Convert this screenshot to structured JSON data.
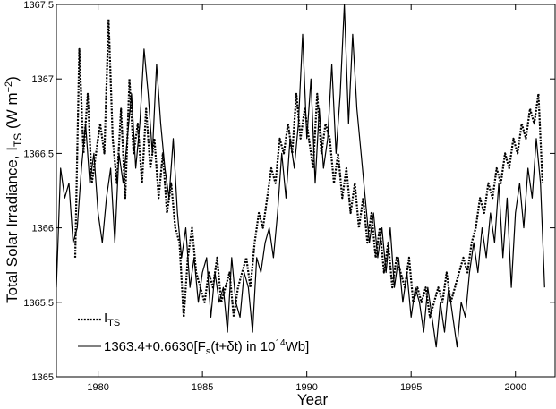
{
  "chart_data": {
    "type": "line",
    "xlabel": "Year",
    "ylabel": {
      "main": "Total Solar Irradiance, I",
      "sub": "TS",
      "units_open": " (W m",
      "units_exp": "−2",
      "units_close": ")"
    },
    "xlim": [
      1978.0,
      2001.9
    ],
    "ylim": [
      1365.0,
      1367.5
    ],
    "x_ticks": [
      1980,
      1985,
      1990,
      1995,
      2000
    ],
    "y_ticks": [
      {
        "value": 1365.0,
        "label": "1365"
      },
      {
        "value": 1365.5,
        "label": "1365.5"
      },
      {
        "value": 1366.0,
        "label": "1366"
      },
      {
        "value": 1366.5,
        "label": "1366.5"
      },
      {
        "value": 1367.0,
        "label": "1367"
      },
      {
        "value": 1367.5,
        "label": "1367.5"
      }
    ],
    "grid": false,
    "legend_position": "bottom-left",
    "legend": {
      "its": {
        "main": "I",
        "sub": "TS"
      },
      "model": {
        "part1": "1363.4+0.6630[F",
        "sub": "s",
        "part2": "(t+δt) in 10",
        "exp": "14",
        "part3": "Wb]"
      }
    },
    "series": [
      {
        "key": "its",
        "style": "dotted",
        "x": [
          1978.9,
          1979.1,
          1979.3,
          1979.5,
          1979.7,
          1979.9,
          1980.1,
          1980.3,
          1980.5,
          1980.7,
          1980.9,
          1981.1,
          1981.3,
          1981.5,
          1981.7,
          1981.9,
          1982.1,
          1982.3,
          1982.5,
          1982.7,
          1982.9,
          1983.1,
          1983.3,
          1983.5,
          1983.7,
          1983.9,
          1984.1,
          1984.3,
          1984.5,
          1984.7,
          1984.9,
          1985.1,
          1985.3,
          1985.5,
          1985.7,
          1985.9,
          1986.1,
          1986.3,
          1986.5,
          1986.7,
          1986.9,
          1987.1,
          1987.3,
          1987.5,
          1987.7,
          1987.9,
          1988.1,
          1988.3,
          1988.5,
          1988.7,
          1988.9,
          1989.1,
          1989.3,
          1989.5,
          1989.7,
          1989.9,
          1990.1,
          1990.3,
          1990.5,
          1990.7,
          1990.9,
          1991.1,
          1991.3,
          1991.5,
          1991.7,
          1991.9,
          1992.1,
          1992.3,
          1992.5,
          1992.7,
          1992.9,
          1993.1,
          1993.3,
          1993.5,
          1993.7,
          1993.9,
          1994.1,
          1994.3,
          1994.5,
          1994.7,
          1994.9,
          1995.1,
          1995.3,
          1995.5,
          1995.7,
          1995.9,
          1996.1,
          1996.3,
          1996.5,
          1996.7,
          1996.9,
          1997.1,
          1997.3,
          1997.5,
          1997.7,
          1997.9,
          1998.1,
          1998.3,
          1998.5,
          1998.7,
          1998.9,
          1999.1,
          1999.3,
          1999.5,
          1999.7,
          1999.9,
          2000.1,
          2000.3,
          2000.5,
          2000.7,
          2000.9,
          2001.1,
          2001.3
        ],
        "y": [
          1365.8,
          1367.2,
          1366.5,
          1366.9,
          1366.3,
          1366.5,
          1366.7,
          1366.5,
          1367.4,
          1366.6,
          1366.3,
          1366.8,
          1366.2,
          1367.0,
          1366.5,
          1366.7,
          1366.3,
          1366.8,
          1366.4,
          1366.6,
          1366.2,
          1366.5,
          1366.1,
          1366.3,
          1366.0,
          1365.9,
          1365.4,
          1365.8,
          1366.0,
          1365.7,
          1365.6,
          1365.5,
          1365.7,
          1365.6,
          1365.8,
          1365.5,
          1365.6,
          1365.7,
          1365.4,
          1365.6,
          1365.7,
          1365.8,
          1365.6,
          1365.9,
          1366.1,
          1366.0,
          1366.2,
          1366.4,
          1366.3,
          1366.6,
          1366.5,
          1366.7,
          1366.5,
          1366.9,
          1366.6,
          1366.8,
          1366.6,
          1366.4,
          1366.9,
          1366.5,
          1366.7,
          1366.6,
          1366.3,
          1366.5,
          1366.2,
          1366.4,
          1366.1,
          1366.3,
          1366.0,
          1366.2,
          1365.9,
          1366.1,
          1365.8,
          1366.0,
          1365.7,
          1365.9,
          1365.6,
          1365.8,
          1365.7,
          1365.6,
          1365.8,
          1365.5,
          1365.6,
          1365.5,
          1365.6,
          1365.4,
          1365.5,
          1365.6,
          1365.5,
          1365.7,
          1365.5,
          1365.6,
          1365.7,
          1365.8,
          1365.7,
          1365.9,
          1366.0,
          1366.2,
          1366.1,
          1366.3,
          1366.2,
          1366.4,
          1366.3,
          1366.5,
          1366.4,
          1366.6,
          1366.5,
          1366.7,
          1366.6,
          1366.8,
          1366.7,
          1366.9,
          1366.3
        ]
      },
      {
        "key": "model",
        "style": "solid",
        "x": [
          1978.0,
          1978.2,
          1978.4,
          1978.6,
          1978.8,
          1979.0,
          1979.2,
          1979.4,
          1979.6,
          1979.8,
          1980.0,
          1980.2,
          1980.4,
          1980.6,
          1980.8,
          1981.0,
          1981.2,
          1981.4,
          1981.6,
          1981.8,
          1982.0,
          1982.2,
          1982.4,
          1982.6,
          1982.8,
          1983.0,
          1983.2,
          1983.4,
          1983.6,
          1983.8,
          1984.0,
          1984.2,
          1984.4,
          1984.6,
          1984.8,
          1985.0,
          1985.2,
          1985.4,
          1985.6,
          1985.8,
          1986.0,
          1986.2,
          1986.4,
          1986.6,
          1986.8,
          1987.0,
          1987.2,
          1987.4,
          1987.6,
          1987.8,
          1988.0,
          1988.2,
          1988.4,
          1988.6,
          1988.8,
          1989.0,
          1989.2,
          1989.4,
          1989.6,
          1989.8,
          1990.0,
          1990.2,
          1990.4,
          1990.6,
          1990.8,
          1991.0,
          1991.2,
          1991.4,
          1991.6,
          1991.8,
          1992.0,
          1992.2,
          1992.4,
          1992.6,
          1992.8,
          1993.0,
          1993.2,
          1993.4,
          1993.6,
          1993.8,
          1994.0,
          1994.2,
          1994.4,
          1994.6,
          1994.8,
          1995.0,
          1995.2,
          1995.4,
          1995.6,
          1995.8,
          1996.0,
          1996.2,
          1996.4,
          1996.6,
          1996.8,
          1997.0,
          1997.2,
          1997.4,
          1997.6,
          1997.8,
          1998.0,
          1998.2,
          1998.4,
          1998.6,
          1998.8,
          1999.0,
          1999.2,
          1999.4,
          1999.6,
          1999.8,
          2000.0,
          2000.2,
          2000.4,
          2000.6,
          2000.8,
          2001.0,
          2001.2,
          2001.4
        ],
        "y": [
          1365.6,
          1366.4,
          1366.2,
          1366.3,
          1365.9,
          1366.0,
          1366.4,
          1366.7,
          1366.3,
          1366.5,
          1366.1,
          1365.9,
          1366.2,
          1366.4,
          1365.9,
          1366.5,
          1366.3,
          1366.6,
          1366.9,
          1366.4,
          1366.7,
          1367.2,
          1366.9,
          1366.5,
          1367.1,
          1366.7,
          1366.4,
          1366.2,
          1366.6,
          1366.1,
          1365.8,
          1366.0,
          1365.6,
          1365.8,
          1365.5,
          1365.7,
          1365.8,
          1365.4,
          1365.7,
          1365.5,
          1365.6,
          1365.3,
          1365.8,
          1365.5,
          1365.4,
          1365.7,
          1365.6,
          1365.3,
          1365.8,
          1365.7,
          1365.9,
          1366.0,
          1365.8,
          1366.1,
          1366.5,
          1366.2,
          1366.6,
          1366.4,
          1366.7,
          1367.3,
          1366.6,
          1367.0,
          1366.3,
          1366.8,
          1366.4,
          1366.6,
          1367.1,
          1366.5,
          1366.9,
          1367.5,
          1366.7,
          1367.3,
          1366.8,
          1366.5,
          1366.2,
          1365.9,
          1366.1,
          1365.8,
          1366.0,
          1365.7,
          1366.0,
          1365.6,
          1365.8,
          1365.5,
          1365.7,
          1365.4,
          1365.6,
          1365.5,
          1365.3,
          1365.6,
          1365.4,
          1365.2,
          1365.5,
          1365.3,
          1365.6,
          1365.4,
          1365.2,
          1365.5,
          1365.4,
          1365.7,
          1365.9,
          1365.7,
          1366.0,
          1365.8,
          1366.1,
          1365.9,
          1366.3,
          1365.8,
          1366.2,
          1365.6,
          1366.1,
          1366.3,
          1366.0,
          1366.4,
          1366.2,
          1366.6,
          1366.3,
          1365.6
        ]
      }
    ]
  }
}
